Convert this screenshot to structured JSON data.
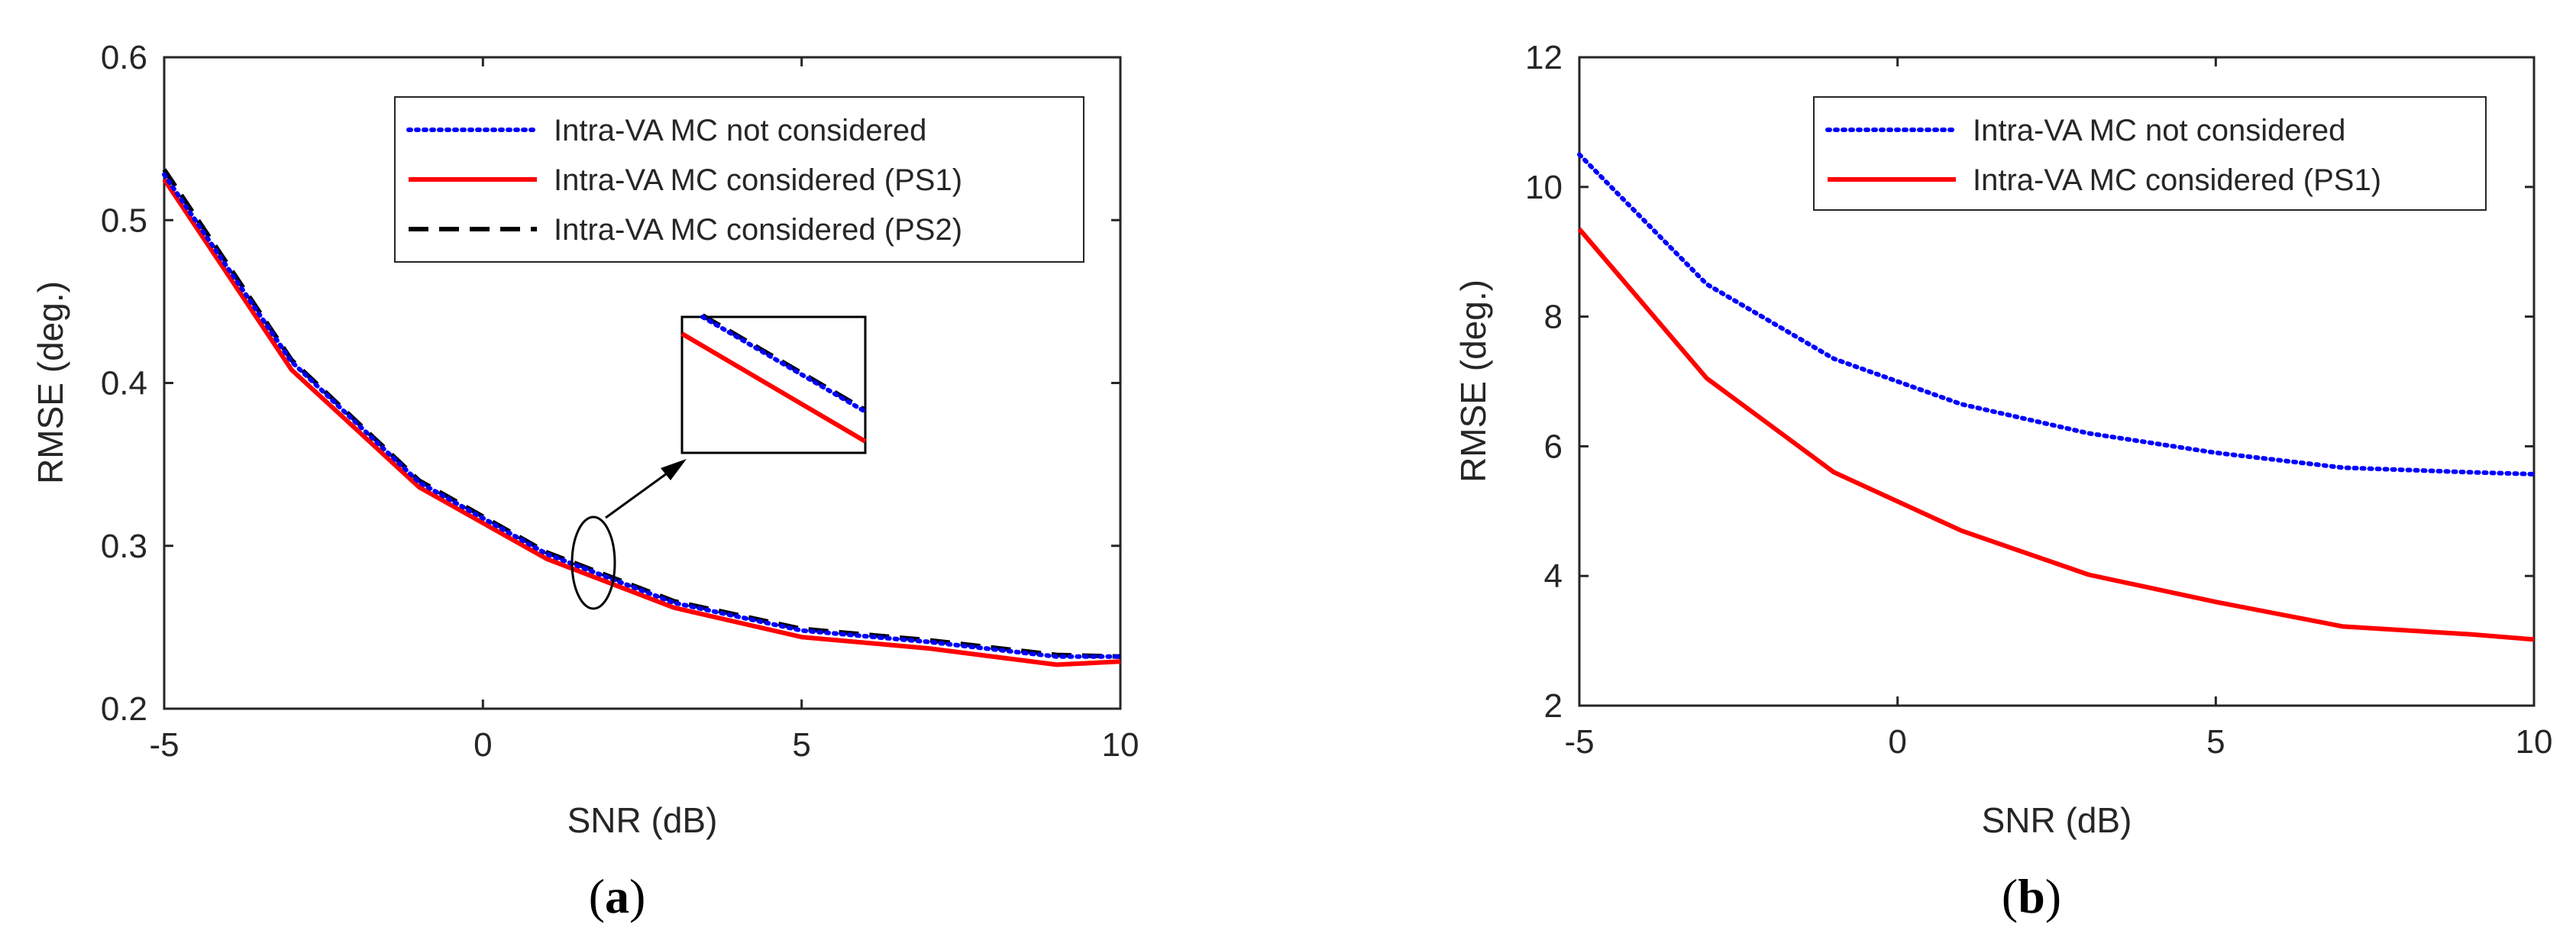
{
  "chart_data": [
    {
      "type": "line",
      "caption": "a",
      "xlabel": "SNR (dB)",
      "ylabel": "RMSE (deg.)",
      "xlim": [
        -5,
        10
      ],
      "ylim": [
        0.2,
        0.6
      ],
      "xticks": [
        "-5",
        "0",
        "5",
        "10"
      ],
      "yticks": [
        "0.2",
        "0.3",
        "0.4",
        "0.5",
        "0.6"
      ],
      "legend_position": "top-right",
      "x": [
        -5,
        -3,
        -1,
        1,
        3,
        5,
        7,
        9,
        10
      ],
      "series": [
        {
          "name": "Intra-VA MC not considered",
          "style": "dotted",
          "color": "#0000ff",
          "values": [
            0.528,
            0.413,
            0.339,
            0.295,
            0.265,
            0.248,
            0.241,
            0.232,
            0.232
          ]
        },
        {
          "name": "Intra-VA MC considered (PS1)",
          "style": "solid",
          "color": "#ff0000",
          "values": [
            0.525,
            0.408,
            0.336,
            0.292,
            0.262,
            0.244,
            0.237,
            0.227,
            0.229
          ]
        },
        {
          "name": "Intra-VA MC considered (PS2)",
          "style": "dashed",
          "color": "#000000",
          "values": [
            0.531,
            0.414,
            0.34,
            0.296,
            0.266,
            0.249,
            0.242,
            0.233,
            0.232
          ]
        }
      ],
      "annotation": "zoomed inset of curves near SNR 2 dB"
    },
    {
      "type": "line",
      "caption": "b",
      "xlabel": "SNR (dB)",
      "ylabel": "RMSE (deg.)",
      "xlim": [
        -5,
        10
      ],
      "ylim": [
        2,
        12
      ],
      "xticks": [
        "-5",
        "0",
        "5",
        "10"
      ],
      "yticks": [
        "2",
        "4",
        "6",
        "8",
        "10",
        "12"
      ],
      "legend_position": "top-right",
      "x": [
        -5,
        -3,
        -1,
        1,
        3,
        5,
        7,
        9,
        10
      ],
      "series": [
        {
          "name": "Intra-VA MC not considered",
          "style": "dotted",
          "color": "#0000ff",
          "values": [
            10.5,
            8.5,
            7.35,
            6.65,
            6.2,
            5.9,
            5.67,
            5.6,
            5.57
          ]
        },
        {
          "name": "Intra-VA MC considered (PS1)",
          "style": "solid",
          "color": "#ff0000",
          "values": [
            9.35,
            7.05,
            5.6,
            4.7,
            4.02,
            3.6,
            3.22,
            3.1,
            3.02
          ]
        }
      ]
    }
  ]
}
